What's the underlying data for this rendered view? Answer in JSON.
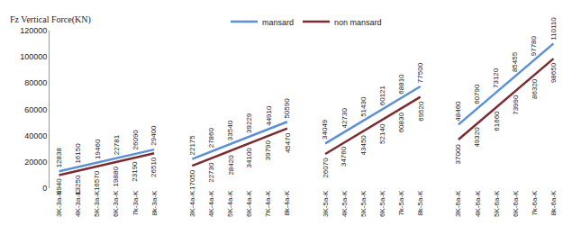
{
  "chart_data": {
    "type": "line",
    "y_label": "Fz Vertical Force(KN)",
    "categories": [
      "3K-3a-K",
      "4K-3a-K",
      "5K-3a-K",
      "6K-3a-K",
      "7k-3a-K",
      "8k-3a-K",
      null,
      "3K-4a-K",
      "4K-4a-K",
      "5K-4a-K",
      "6K-4a-K",
      "7K-4a-K",
      "8k-4a-K",
      null,
      "3K-5a-K",
      "4K-5a-K",
      "5K-5a-K",
      "6K-5a-K",
      "7k-5a-K",
      "8k-5a-K",
      null,
      "3K-6a-K",
      "4K-6a-K",
      "5K-6a-K",
      "6K-6a-K",
      "7k-6a-K",
      "8k-6a-K"
    ],
    "series": [
      {
        "name": "mansard",
        "color": "#5b8fd6",
        "values": [
          12838,
          16150,
          19460,
          22781,
          26090,
          29400,
          null,
          22175,
          27860,
          33540,
          39229,
          44910,
          50590,
          null,
          34049,
          42730,
          51430,
          60121,
          68810,
          77500,
          null,
          48460,
          60790,
          73120,
          85455,
          97780,
          110110
        ]
      },
      {
        "name": "non mansard",
        "color": "#7b2c2f",
        "values": [
          9940,
          13250,
          16570,
          19880,
          23190,
          26510,
          null,
          17050,
          22730,
          28420,
          34100,
          39790,
          45470,
          null,
          26070,
          34760,
          43450,
          52140,
          60830,
          69520,
          null,
          37000,
          49320,
          61660,
          73990,
          86320,
          98650
        ]
      }
    ],
    "ylim": [
      0,
      120000
    ],
    "yticks": [
      0,
      20000,
      40000,
      60000,
      80000,
      100000,
      120000
    ],
    "grid": false,
    "legend": "top",
    "data_labels": true
  }
}
